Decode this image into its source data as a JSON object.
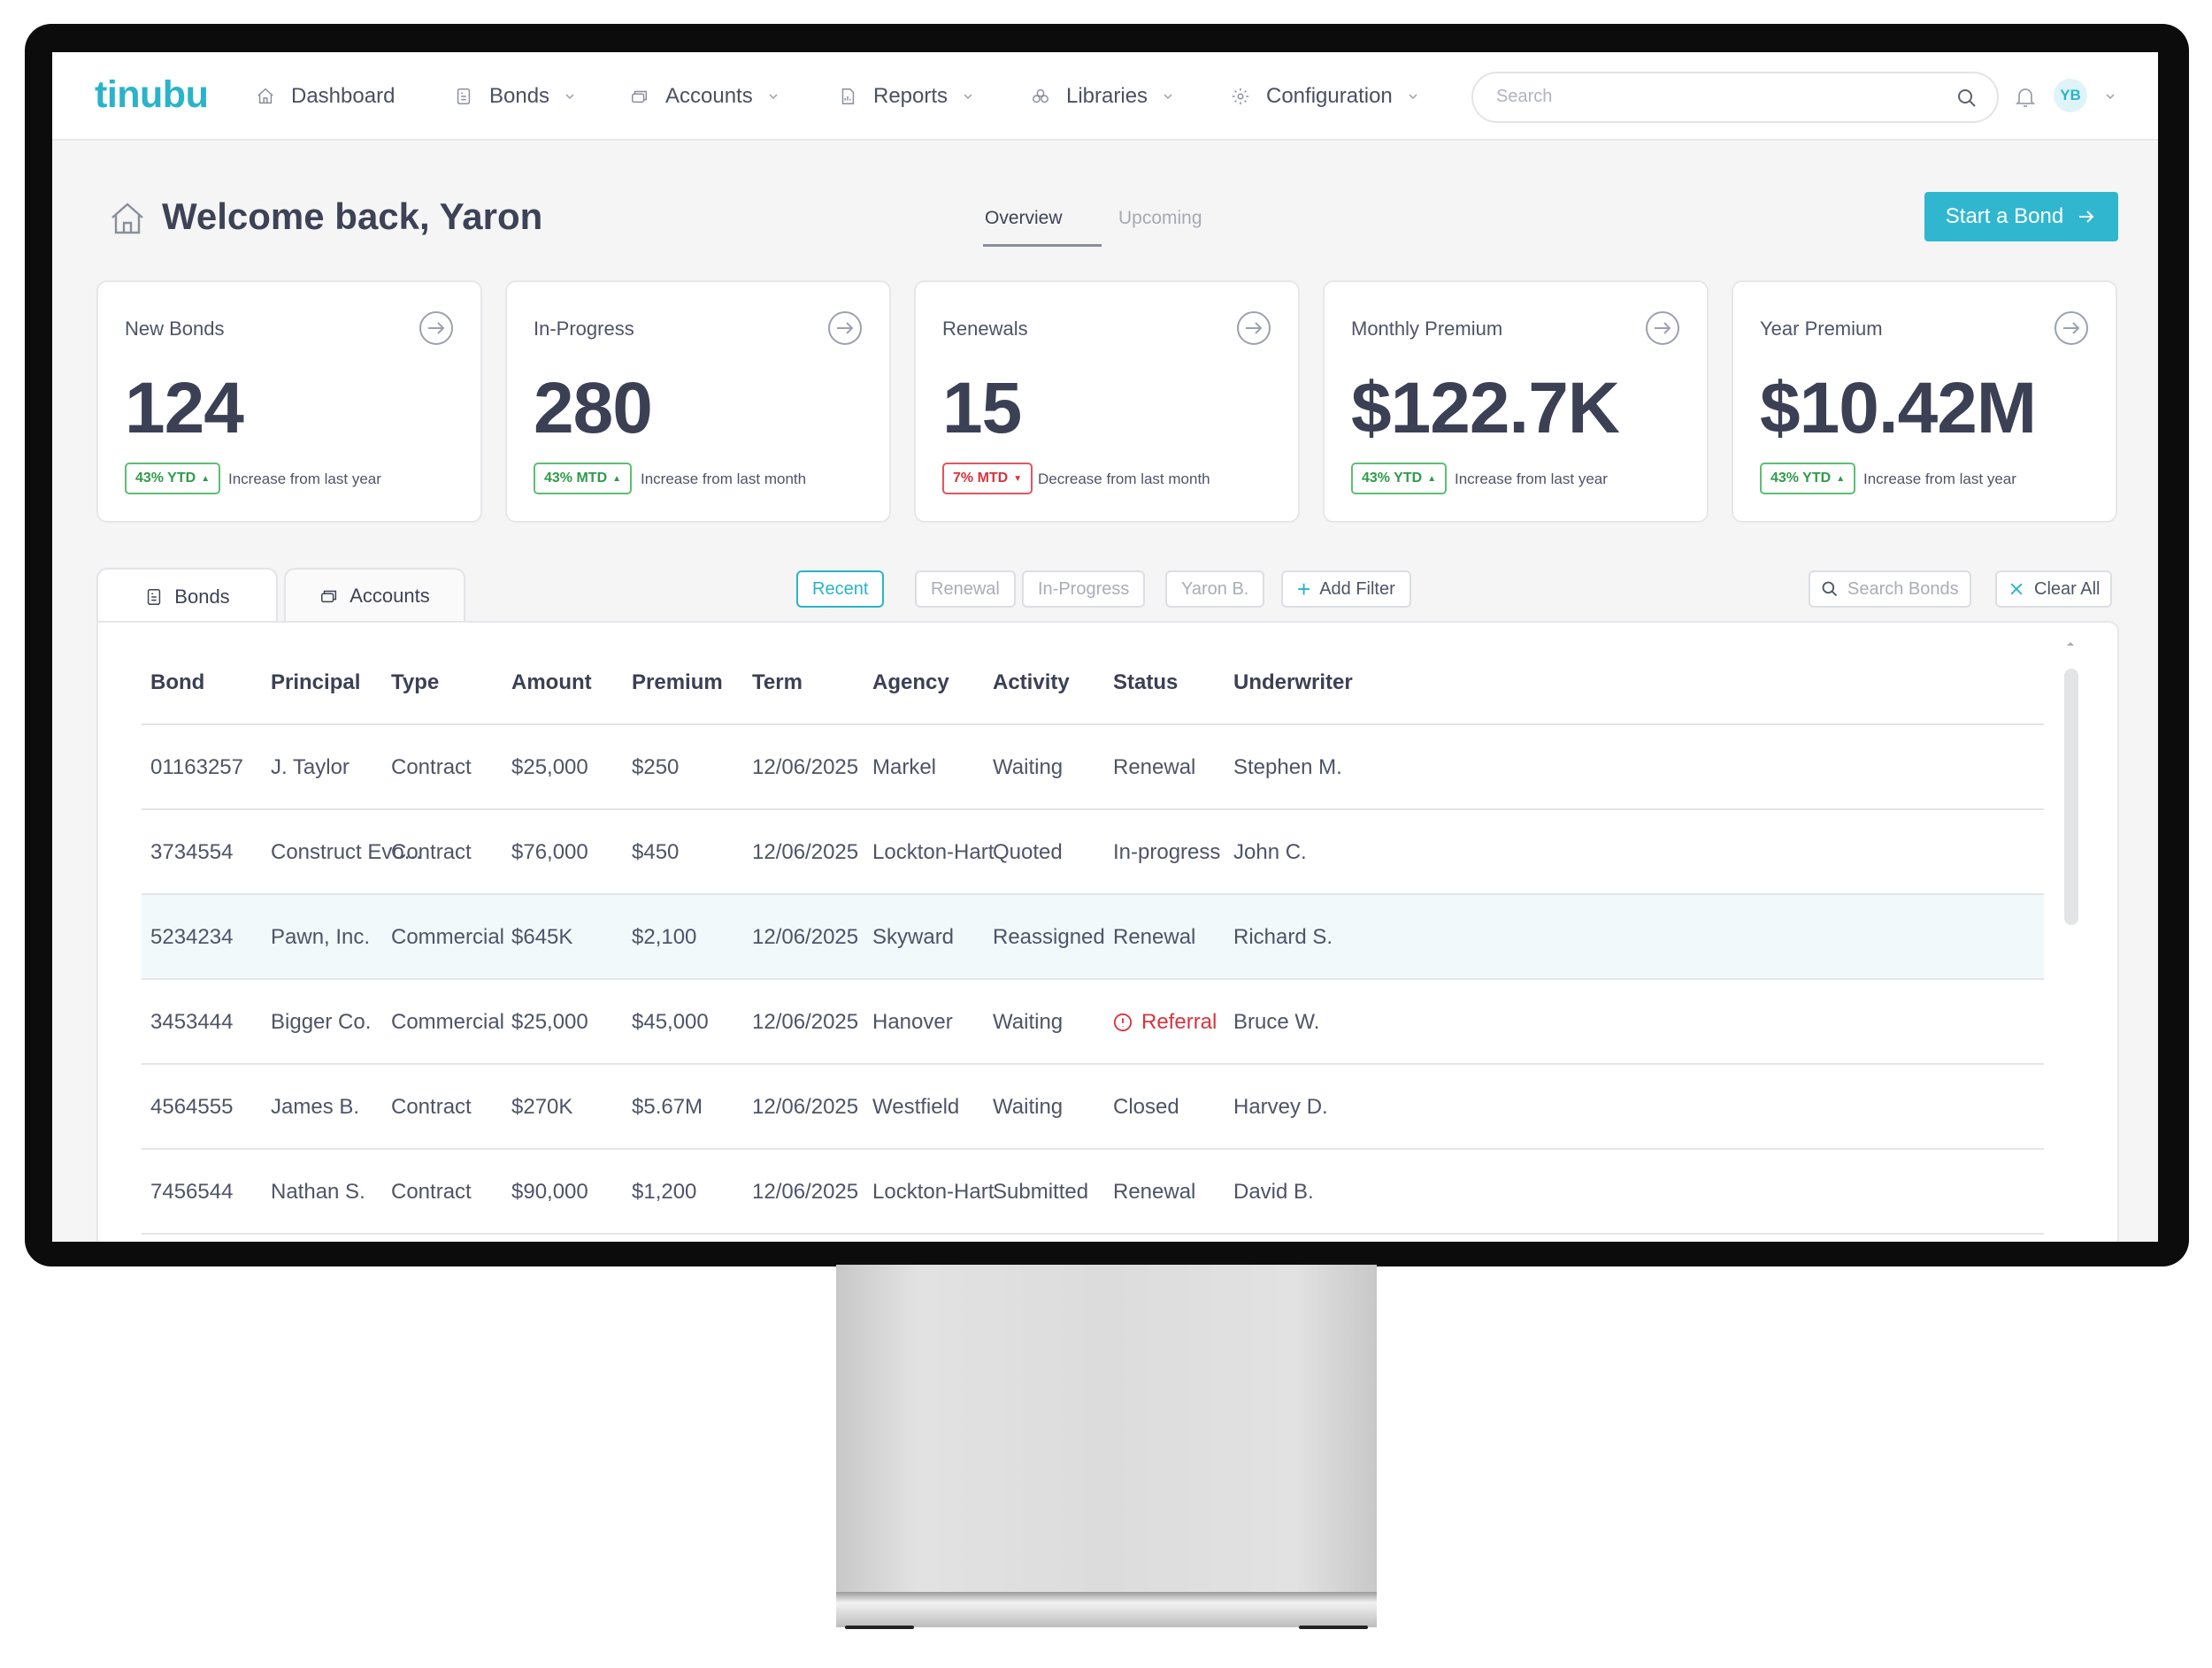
{
  "brand": {
    "logo": "tinubu",
    "accent": "#2ab3c9"
  },
  "nav": {
    "items": [
      {
        "label": "Dashboard",
        "icon": "home-icon",
        "dropdown": false
      },
      {
        "label": "Bonds",
        "icon": "document-icon",
        "dropdown": true
      },
      {
        "label": "Accounts",
        "icon": "stack-icon",
        "dropdown": true
      },
      {
        "label": "Reports",
        "icon": "report-icon",
        "dropdown": true
      },
      {
        "label": "Libraries",
        "icon": "library-icon",
        "dropdown": true
      },
      {
        "label": "Configuration",
        "icon": "gear-icon",
        "dropdown": true
      }
    ],
    "search_placeholder": "Search",
    "user_initials": "YB"
  },
  "header": {
    "welcome": "Welcome back, Yaron",
    "tabs": [
      "Overview",
      "Upcoming"
    ],
    "active_tab": "Overview",
    "cta": "Start a Bond"
  },
  "stats": [
    {
      "label": "New Bonds",
      "value": "124",
      "badge": "43% YTD",
      "trend": "up",
      "note": "Increase from last year"
    },
    {
      "label": "In-Progress",
      "value": "280",
      "badge": "43% MTD",
      "trend": "up",
      "note": "Increase from last month"
    },
    {
      "label": "Renewals",
      "value": "15",
      "badge": "7% MTD",
      "trend": "down",
      "note": "Decrease from last month"
    },
    {
      "label": "Monthly Premium",
      "value": "$122.7K",
      "badge": "43% YTD",
      "trend": "up",
      "note": "Increase from last year"
    },
    {
      "label": "Year Premium",
      "value": "$10.42M",
      "badge": "43% YTD",
      "trend": "up",
      "note": "Increase from last year"
    }
  ],
  "list_tabs": [
    "Bonds",
    "Accounts"
  ],
  "filters": [
    "Recent",
    "Renewal",
    "In-Progress",
    "Yaron B."
  ],
  "active_filter": "Recent",
  "add_filter": "Add Filter",
  "search_bonds": "Search Bonds",
  "clear_all": "Clear All",
  "table": {
    "columns": [
      "Bond",
      "Principal",
      "Type",
      "Amount",
      "Premium",
      "Term",
      "Agency",
      "Activity",
      "Status",
      "Underwriter"
    ],
    "rows": [
      [
        "01163257",
        "J. Taylor",
        "Contract",
        "$25,000",
        "$250",
        "12/06/2025",
        "Markel",
        "Waiting",
        "Renewal",
        "Stephen M."
      ],
      [
        "3734554",
        "Construct Evo...",
        "Contract",
        "$76,000",
        "$450",
        "12/06/2025",
        "Lockton-Hart",
        "Quoted",
        "In-progress",
        "John C."
      ],
      [
        "5234234",
        "Pawn, Inc.",
        "Commercial",
        "$645K",
        "$2,100",
        "12/06/2025",
        "Skyward",
        "Reassigned",
        "Renewal",
        "Richard S."
      ],
      [
        "3453444",
        "Bigger Co.",
        "Commercial",
        "$25,000",
        "$45,000",
        "12/06/2025",
        "Hanover",
        "Waiting",
        "Referral",
        "Bruce W."
      ],
      [
        "4564555",
        "James B.",
        "Contract",
        "$270K",
        "$5.67M",
        "12/06/2025",
        "Westfield",
        "Waiting",
        "Closed",
        "Harvey D."
      ],
      [
        "7456544",
        "Nathan S.",
        "Contract",
        "$90,000",
        "$1,200",
        "12/06/2025",
        "Lockton-Hart",
        "Submitted",
        "Renewal",
        "David B."
      ]
    ],
    "highlighted_row": 2,
    "alert_status": "Referral"
  },
  "colors": {
    "up": "#2f9b4a",
    "down": "#d8343e",
    "primary_button": "#30b7cf"
  }
}
